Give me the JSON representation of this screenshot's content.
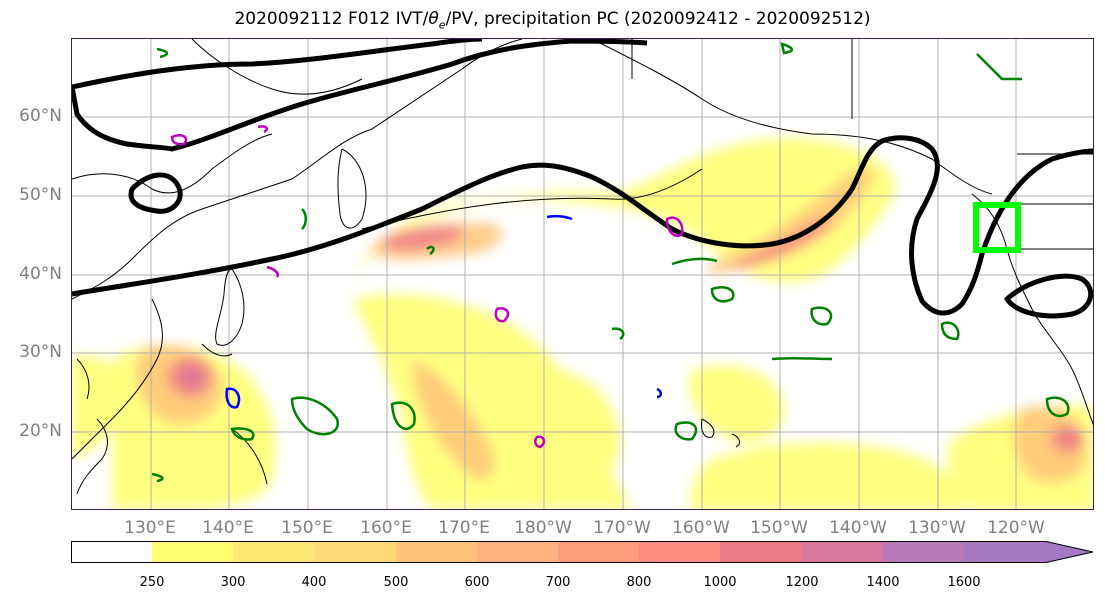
{
  "title": "2020092112 F012 IVT/θe/PV, precipitation PC (2020092412 - 2020092512)",
  "title_parts": {
    "prefix": "2020092112 F012 IVT/",
    "theta": "θ",
    "theta_sub": "e",
    "suffix": "/PV, precipitation PC (2020092412 - 2020092512)"
  },
  "map": {
    "lat_labels": [
      "60°N",
      "50°N",
      "40°N",
      "30°N",
      "20°N"
    ],
    "lon_labels": [
      "130°E",
      "140°E",
      "150°E",
      "160°E",
      "170°E",
      "180°W",
      "170°W",
      "160°W",
      "150°W",
      "140°W",
      "130°W",
      "120°W"
    ],
    "lat_range": [
      10,
      70
    ],
    "lon_range": [
      120,
      250
    ],
    "colors": {
      "contour_black": "#000000",
      "contour_green": "#008000",
      "contour_blue": "#0000ff",
      "contour_magenta": "#c000c0",
      "highlight_box": "#00ff00",
      "gridline": "#aaaaaa",
      "coastline": "#000000"
    }
  },
  "colorbar": {
    "ticks": [
      "250",
      "300",
      "400",
      "500",
      "600",
      "700",
      "800",
      "1000",
      "1200",
      "1400",
      "1600"
    ],
    "colors": [
      "#ffffff",
      "#ffff73",
      "#ffe874",
      "#ffd878",
      "#ffc47a",
      "#ffb27c",
      "#ff9d7d",
      "#ff8a80",
      "#ee7a86",
      "#d8789e",
      "#b87ab8",
      "#a679c3"
    ]
  }
}
